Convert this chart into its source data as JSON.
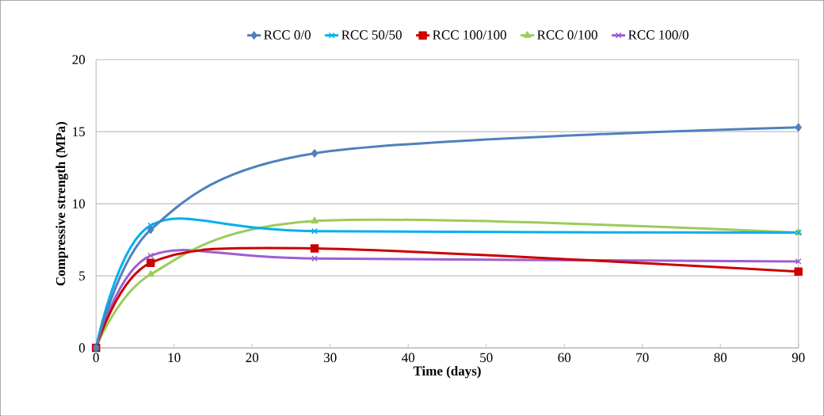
{
  "chart_data": {
    "type": "line",
    "xlabel": "Time (days)",
    "ylabel": "Compressive strength (MPa)",
    "x": [
      0,
      7,
      28,
      90
    ],
    "xlim": [
      0,
      90
    ],
    "xticks": [
      0,
      10,
      20,
      30,
      40,
      50,
      60,
      70,
      80,
      90
    ],
    "ylim": [
      0,
      20
    ],
    "yticks": [
      0,
      5,
      10,
      15,
      20
    ],
    "grid": "y",
    "legend": "top",
    "line_style": "solid",
    "series": [
      {
        "name": "RCC 0/0",
        "color": "#4f81bd",
        "marker": "diamond",
        "values": [
          0,
          8.2,
          13.5,
          15.3
        ]
      },
      {
        "name": "RCC 50/50",
        "color": "#00b0f0",
        "marker": "cross",
        "values": [
          0,
          8.5,
          8.1,
          8.0
        ]
      },
      {
        "name": "RCC 100/100",
        "color": "#cc0000",
        "marker": "square",
        "values": [
          0,
          5.9,
          6.9,
          5.3
        ]
      },
      {
        "name": "RCC 0/100",
        "color": "#9bcc5a",
        "marker": "triangle",
        "values": [
          0,
          5.1,
          8.8,
          8.0
        ]
      },
      {
        "name": "RCC 100/0",
        "color": "#9e5ecf",
        "marker": "cross",
        "values": [
          0,
          6.4,
          6.2,
          6.0
        ]
      }
    ]
  }
}
